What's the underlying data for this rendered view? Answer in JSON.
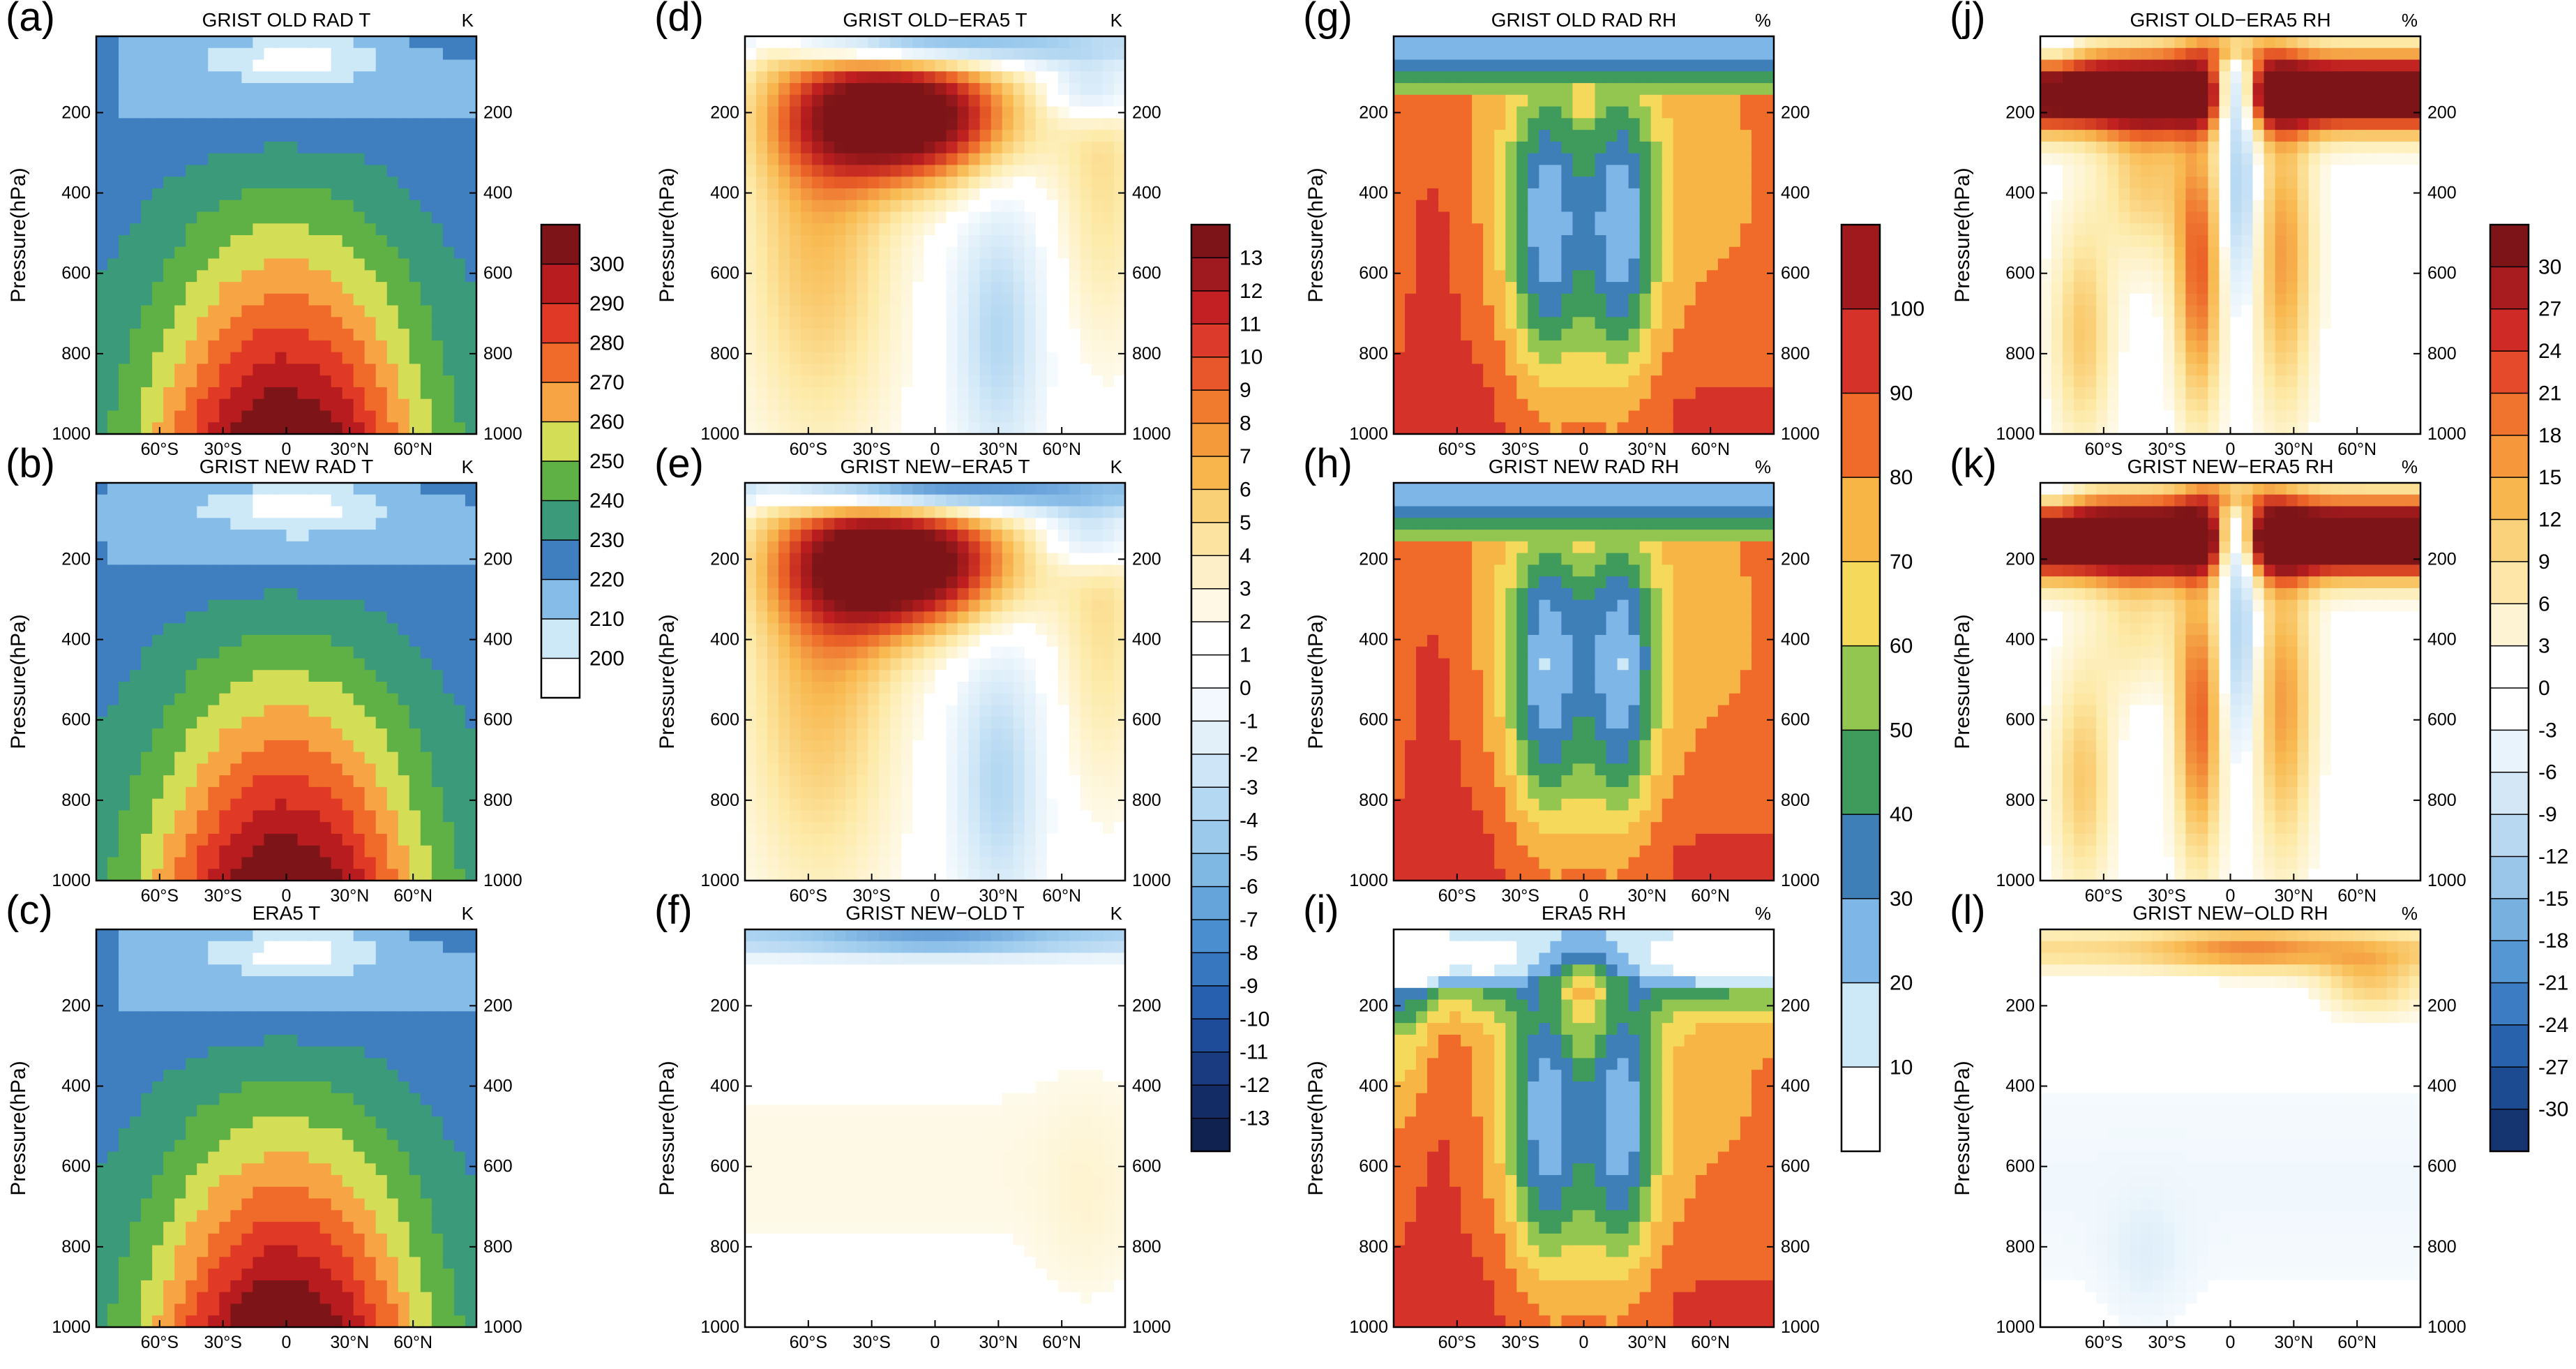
{
  "figure": {
    "ylabel": "Pressure(hPa)",
    "y_ticks": [
      200,
      400,
      600,
      800,
      1000
    ],
    "x_ticks": [
      "60°S",
      "30°S",
      "0",
      "30°N",
      "60°N"
    ]
  },
  "colorbars": [
    {
      "id": "temperature",
      "unit": "K",
      "labels": [
        "300",
        "290",
        "280",
        "270",
        "260",
        "250",
        "240",
        "230",
        "220",
        "210",
        "200"
      ],
      "colors": [
        "#7d1518",
        "#b91c1e",
        "#e03a26",
        "#f06a2a",
        "#f7a544",
        "#d3dd55",
        "#5fb146",
        "#3b9a79",
        "#3f7fc0",
        "#86bde8",
        "#cde8f7",
        "#ffffff"
      ]
    },
    {
      "id": "temperature-diff",
      "unit": "K",
      "labels": [
        "13",
        "12",
        "11",
        "10",
        "9",
        "8",
        "7",
        "6",
        "5",
        "4",
        "3",
        "2",
        "1",
        "0",
        "-1",
        "-2",
        "-3",
        "-4",
        "-5",
        "-6",
        "-7",
        "-8",
        "-9",
        "-10",
        "-11",
        "-12",
        "-13"
      ],
      "colors": [
        "#7d1518",
        "#9f1a1e",
        "#c22023",
        "#dc3a2a",
        "#e8562c",
        "#f07a2e",
        "#f59a3a",
        "#f8b54c",
        "#fad076",
        "#fce3a0",
        "#fdf0c8",
        "#fef8e4",
        "#ffffff",
        "#ffffff",
        "#f2f8fd",
        "#e2f0fa",
        "#cde5f6",
        "#b4d8f2",
        "#9ac9ec",
        "#80b8e4",
        "#65a4db",
        "#4b8ecf",
        "#3677c0",
        "#2760ae",
        "#1f4c98",
        "#1a3b80",
        "#142c66",
        "#0f2250"
      ]
    },
    {
      "id": "relative-humidity",
      "unit": "%",
      "labels": [
        "100",
        "90",
        "80",
        "70",
        "60",
        "50",
        "40",
        "30",
        "20",
        "10"
      ],
      "colors": [
        "#a0191c",
        "#d5332a",
        "#f06a2a",
        "#f7b545",
        "#f5d95a",
        "#92c650",
        "#3f9b5c",
        "#3e7fb8",
        "#7fb6e8",
        "#cde8f7",
        "#ffffff"
      ]
    },
    {
      "id": "relative-humidity-diff",
      "unit": "%",
      "labels": [
        "30",
        "27",
        "24",
        "21",
        "18",
        "15",
        "12",
        "9",
        "6",
        "3",
        "0",
        "-3",
        "-6",
        "-9",
        "-12",
        "-15",
        "-18",
        "-21",
        "-24",
        "-27",
        "-30"
      ],
      "colors": [
        "#7d1518",
        "#a81b1e",
        "#cf2a26",
        "#e54b2b",
        "#f0732e",
        "#f5973a",
        "#f8b64f",
        "#fbd27c",
        "#fde6a8",
        "#fef4d4",
        "#ffffff",
        "#ffffff",
        "#e9f3fb",
        "#d3e7f7",
        "#b8d8f1",
        "#9ac6ea",
        "#78b0e0",
        "#5597d2",
        "#3b7cc2",
        "#2962ac",
        "#1d4b92",
        "#14356f"
      ]
    }
  ],
  "panels": [
    {
      "letter": "(a)",
      "title": "GRIST OLD RAD T",
      "unit": "K",
      "field": "temp",
      "variant": "old"
    },
    {
      "letter": "(b)",
      "title": "GRIST NEW RAD T",
      "unit": "K",
      "field": "temp",
      "variant": "new"
    },
    {
      "letter": "(c)",
      "title": "ERA5 T",
      "unit": "K",
      "field": "temp",
      "variant": "era"
    },
    {
      "letter": "(d)",
      "title": "GRIST OLD−ERA5 T",
      "unit": "K",
      "field": "tdiff",
      "variant": "old"
    },
    {
      "letter": "(e)",
      "title": "GRIST NEW−ERA5 T",
      "unit": "K",
      "field": "tdiff",
      "variant": "new"
    },
    {
      "letter": "(f)",
      "title": "GRIST NEW−OLD T",
      "unit": "K",
      "field": "tdiff",
      "variant": "nmo"
    },
    {
      "letter": "(g)",
      "title": "GRIST OLD RAD RH",
      "unit": "%",
      "field": "rh",
      "variant": "old"
    },
    {
      "letter": "(h)",
      "title": "GRIST NEW RAD RH",
      "unit": "%",
      "field": "rh",
      "variant": "new"
    },
    {
      "letter": "(i)",
      "title": "ERA5 RH",
      "unit": "%",
      "field": "rh",
      "variant": "era"
    },
    {
      "letter": "(j)",
      "title": "GRIST OLD−ERA5 RH",
      "unit": "%",
      "field": "rhdiff",
      "variant": "old"
    },
    {
      "letter": "(k)",
      "title": "GRIST NEW−ERA5 RH",
      "unit": "%",
      "field": "rhdiff",
      "variant": "new"
    },
    {
      "letter": "(l)",
      "title": "GRIST NEW−OLD RH",
      "unit": "%",
      "field": "rhdiff",
      "variant": "nmo"
    }
  ],
  "chart_data": [
    {
      "type": "heatmap",
      "panel": "(a)",
      "title": "GRIST OLD RAD T",
      "unit": "K",
      "xlabel": "",
      "ylabel": "Pressure(hPa)",
      "x_range": [
        "90°S",
        "90°N"
      ],
      "y_range_hPa": [
        10,
        1000
      ],
      "levels": [
        200,
        210,
        220,
        230,
        240,
        250,
        260,
        270,
        280,
        290,
        300
      ]
    },
    {
      "type": "heatmap",
      "panel": "(b)",
      "title": "GRIST NEW RAD T",
      "unit": "K",
      "xlabel": "",
      "ylabel": "Pressure(hPa)",
      "x_range": [
        "90°S",
        "90°N"
      ],
      "y_range_hPa": [
        10,
        1000
      ],
      "levels": [
        200,
        210,
        220,
        230,
        240,
        250,
        260,
        270,
        280,
        290,
        300
      ]
    },
    {
      "type": "heatmap",
      "panel": "(c)",
      "title": "ERA5 T",
      "unit": "K",
      "xlabel": "",
      "ylabel": "Pressure(hPa)",
      "x_range": [
        "90°S",
        "90°N"
      ],
      "y_range_hPa": [
        10,
        1000
      ],
      "levels": [
        200,
        210,
        220,
        230,
        240,
        250,
        260,
        270,
        280,
        290,
        300
      ]
    },
    {
      "type": "heatmap",
      "panel": "(d)",
      "title": "GRIST OLD−ERA5 T",
      "unit": "K",
      "xlabel": "",
      "ylabel": "Pressure(hPa)",
      "x_range": [
        "90°S",
        "90°N"
      ],
      "y_range_hPa": [
        10,
        1000
      ],
      "levels": [
        -13,
        13
      ]
    },
    {
      "type": "heatmap",
      "panel": "(e)",
      "title": "GRIST NEW−ERA5 T",
      "unit": "K",
      "xlabel": "",
      "ylabel": "Pressure(hPa)",
      "x_range": [
        "90°S",
        "90°N"
      ],
      "y_range_hPa": [
        10,
        1000
      ],
      "levels": [
        -13,
        13
      ]
    },
    {
      "type": "heatmap",
      "panel": "(f)",
      "title": "GRIST NEW−OLD T",
      "unit": "K",
      "xlabel": "",
      "ylabel": "Pressure(hPa)",
      "x_range": [
        "90°S",
        "90°N"
      ],
      "y_range_hPa": [
        10,
        1000
      ],
      "levels": [
        -13,
        13
      ]
    },
    {
      "type": "heatmap",
      "panel": "(g)",
      "title": "GRIST OLD RAD RH",
      "unit": "%",
      "xlabel": "",
      "ylabel": "Pressure(hPa)",
      "x_range": [
        "90°S",
        "90°N"
      ],
      "y_range_hPa": [
        10,
        1000
      ],
      "levels": [
        10,
        20,
        30,
        40,
        50,
        60,
        70,
        80,
        90,
        100
      ]
    },
    {
      "type": "heatmap",
      "panel": "(h)",
      "title": "GRIST NEW RAD RH",
      "unit": "%",
      "xlabel": "",
      "ylabel": "Pressure(hPa)",
      "x_range": [
        "90°S",
        "90°N"
      ],
      "y_range_hPa": [
        10,
        1000
      ],
      "levels": [
        10,
        20,
        30,
        40,
        50,
        60,
        70,
        80,
        90,
        100
      ]
    },
    {
      "type": "heatmap",
      "panel": "(i)",
      "title": "ERA5 RH",
      "unit": "%",
      "xlabel": "",
      "ylabel": "Pressure(hPa)",
      "x_range": [
        "90°S",
        "90°N"
      ],
      "y_range_hPa": [
        10,
        1000
      ],
      "levels": [
        10,
        20,
        30,
        40,
        50,
        60,
        70,
        80,
        90,
        100
      ]
    },
    {
      "type": "heatmap",
      "panel": "(j)",
      "title": "GRIST OLD−ERA5 RH",
      "unit": "%",
      "xlabel": "",
      "ylabel": "Pressure(hPa)",
      "x_range": [
        "90°S",
        "90°N"
      ],
      "y_range_hPa": [
        10,
        1000
      ],
      "levels": [
        -30,
        30
      ]
    },
    {
      "type": "heatmap",
      "panel": "(k)",
      "title": "GRIST NEW−ERA5 RH",
      "unit": "%",
      "xlabel": "",
      "ylabel": "Pressure(hPa)",
      "x_range": [
        "90°S",
        "90°N"
      ],
      "y_range_hPa": [
        10,
        1000
      ],
      "levels": [
        -30,
        30
      ]
    },
    {
      "type": "heatmap",
      "panel": "(l)",
      "title": "GRIST NEW−OLD RH",
      "unit": "%",
      "xlabel": "",
      "ylabel": "Pressure(hPa)",
      "x_range": [
        "90°S",
        "90°N"
      ],
      "y_range_hPa": [
        10,
        1000
      ],
      "levels": [
        -30,
        30
      ]
    }
  ]
}
